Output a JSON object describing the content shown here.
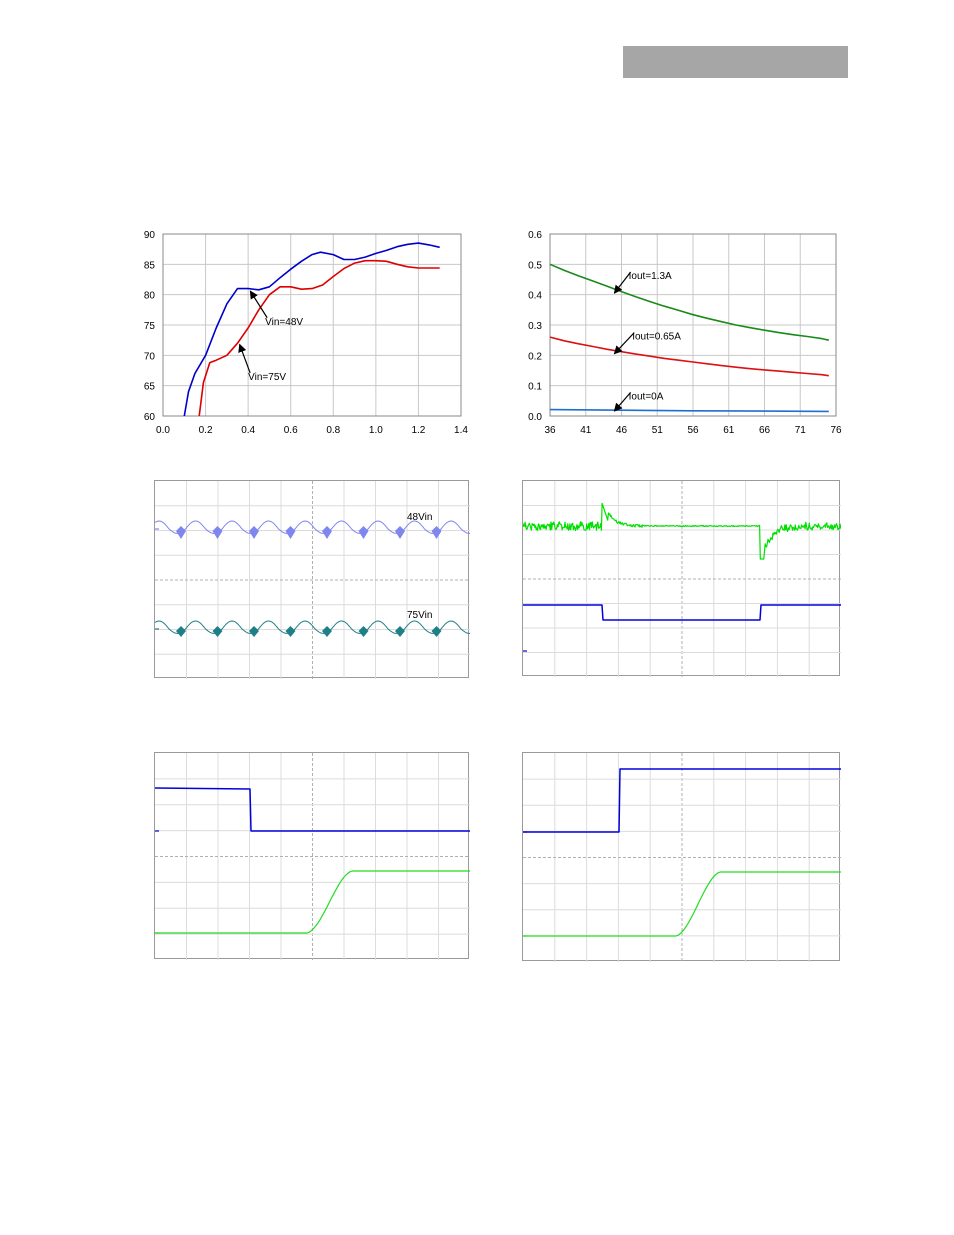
{
  "header": {
    "bar_color": "#a6a6a6"
  },
  "chart_data": [
    {
      "type": "line",
      "x_ticks": [
        "0.0",
        "0.2",
        "0.4",
        "0.6",
        "0.8",
        "1.0",
        "1.2",
        "1.4"
      ],
      "y_ticks": [
        "60",
        "65",
        "70",
        "75",
        "80",
        "85",
        "90"
      ],
      "xlim": [
        0,
        1.4
      ],
      "ylim": [
        60,
        90
      ],
      "grid": true,
      "series": [
        {
          "color": "#0000cc",
          "x": [
            0.1,
            0.12,
            0.15,
            0.2,
            0.25,
            0.3,
            0.35,
            0.4,
            0.45,
            0.5,
            0.55,
            0.6,
            0.65,
            0.7,
            0.74,
            0.8,
            0.85,
            0.9,
            0.95,
            1.0,
            1.05,
            1.1,
            1.15,
            1.2,
            1.25,
            1.3
          ],
          "y": [
            60.0,
            64.0,
            67.0,
            70.0,
            74.5,
            78.5,
            81.0,
            81.0,
            80.8,
            81.3,
            82.8,
            84.2,
            85.5,
            86.6,
            87.0,
            86.6,
            85.8,
            85.8,
            86.2,
            86.8,
            87.3,
            87.9,
            88.3,
            88.5,
            88.2,
            87.8
          ]
        },
        {
          "color": "#dd0000",
          "x": [
            0.17,
            0.19,
            0.22,
            0.25,
            0.3,
            0.35,
            0.4,
            0.45,
            0.5,
            0.55,
            0.6,
            0.65,
            0.7,
            0.75,
            0.8,
            0.85,
            0.9,
            0.95,
            1.0,
            1.05,
            1.1,
            1.15,
            1.2,
            1.25,
            1.3
          ],
          "y": [
            60.0,
            65.5,
            68.8,
            69.2,
            70.0,
            72.0,
            74.5,
            77.5,
            80.0,
            81.3,
            81.3,
            80.9,
            81.0,
            81.6,
            83.0,
            84.3,
            85.2,
            85.6,
            85.6,
            85.5,
            85.0,
            84.6,
            84.4,
            84.4,
            84.4
          ]
        }
      ],
      "annotations": [
        {
          "text": "Vin=48V",
          "x": 0.48,
          "y": 75.7,
          "ax": 0.41,
          "ay": 80.6
        },
        {
          "text": "Vin=75V",
          "x": 0.4,
          "y": 66.6,
          "ax": 0.36,
          "ay": 71.8
        }
      ]
    },
    {
      "type": "line",
      "x_ticks": [
        "36",
        "41",
        "46",
        "51",
        "56",
        "61",
        "66",
        "71",
        "76"
      ],
      "y_ticks": [
        "0.0",
        "0.1",
        "0.2",
        "0.3",
        "0.4",
        "0.5",
        "0.6"
      ],
      "xlim": [
        36,
        76
      ],
      "ylim": [
        0,
        0.6
      ],
      "grid": true,
      "series": [
        {
          "color": "#1a8a1a",
          "x": [
            36,
            38,
            40,
            42,
            44,
            46,
            48,
            50,
            52,
            54,
            56,
            58,
            60,
            62,
            64,
            66,
            68,
            70,
            72,
            74,
            75
          ],
          "y": [
            0.5,
            0.48,
            0.462,
            0.445,
            0.428,
            0.41,
            0.393,
            0.377,
            0.362,
            0.348,
            0.334,
            0.322,
            0.311,
            0.3,
            0.291,
            0.283,
            0.275,
            0.268,
            0.262,
            0.255,
            0.25
          ]
        },
        {
          "color": "#dd1111",
          "x": [
            36,
            38,
            40,
            42,
            44,
            46,
            48,
            50,
            52,
            54,
            56,
            58,
            60,
            62,
            64,
            66,
            68,
            70,
            72,
            74,
            75
          ],
          "y": [
            0.26,
            0.248,
            0.238,
            0.229,
            0.22,
            0.212,
            0.204,
            0.197,
            0.19,
            0.184,
            0.178,
            0.172,
            0.166,
            0.161,
            0.156,
            0.152,
            0.148,
            0.144,
            0.14,
            0.136,
            0.133
          ]
        },
        {
          "color": "#1f6fd0",
          "x": [
            36,
            46,
            56,
            66,
            75
          ],
          "y": [
            0.021,
            0.019,
            0.017,
            0.016,
            0.015
          ]
        }
      ],
      "annotations": [
        {
          "text": "Iout=1.3A",
          "x": 47.0,
          "y": 0.465,
          "ax": 45.0,
          "ay": 0.405
        },
        {
          "text": "Iout=0.65A",
          "x": 47.5,
          "y": 0.265,
          "ax": 45.0,
          "ay": 0.205
        },
        {
          "text": "Iout=0A",
          "x": 47.0,
          "y": 0.068,
          "ax": 45.0,
          "ay": 0.016
        }
      ]
    }
  ],
  "scopes": {
    "ripple": {
      "label_top": "48Vin",
      "label_bottom": "75Vin",
      "color_top": "#7f86ee",
      "color_bottom": "#1f7f86"
    },
    "transient": {
      "color_top": "#00e000",
      "color_bottom": "#0000dd"
    },
    "startup_left": {
      "color_top": "#0000dd",
      "color_bottom": "#22dd22"
    },
    "startup_right": {
      "color_top": "#0000dd",
      "color_bottom": "#22dd22"
    }
  }
}
